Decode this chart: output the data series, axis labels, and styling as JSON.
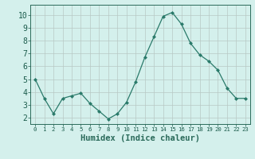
{
  "x": [
    0,
    1,
    2,
    3,
    4,
    5,
    6,
    7,
    8,
    9,
    10,
    11,
    12,
    13,
    14,
    15,
    16,
    17,
    18,
    19,
    20,
    21,
    22,
    23
  ],
  "y": [
    5.0,
    3.5,
    2.3,
    3.5,
    3.7,
    3.9,
    3.1,
    2.5,
    1.9,
    2.3,
    3.2,
    4.8,
    6.7,
    8.3,
    9.9,
    10.2,
    9.3,
    7.8,
    6.9,
    6.4,
    5.7,
    4.3,
    3.5,
    3.5
  ],
  "line_color": "#2a7a6a",
  "marker": "D",
  "marker_size": 2.0,
  "bg_color": "#d4f0ec",
  "grid_color": "#b8c8c4",
  "xlabel": "Humidex (Indice chaleur)",
  "ylim": [
    1.5,
    10.8
  ],
  "xlim": [
    -0.5,
    23.5
  ],
  "yticks": [
    2,
    3,
    4,
    5,
    6,
    7,
    8,
    9,
    10
  ],
  "xticks": [
    0,
    1,
    2,
    3,
    4,
    5,
    6,
    7,
    8,
    9,
    10,
    11,
    12,
    13,
    14,
    15,
    16,
    17,
    18,
    19,
    20,
    21,
    22,
    23
  ],
  "axis_color": "#2a6a5a",
  "tick_color": "#1a5a4a",
  "xlabel_fontsize": 7.5,
  "ytick_fontsize": 7,
  "xtick_fontsize": 5.2
}
